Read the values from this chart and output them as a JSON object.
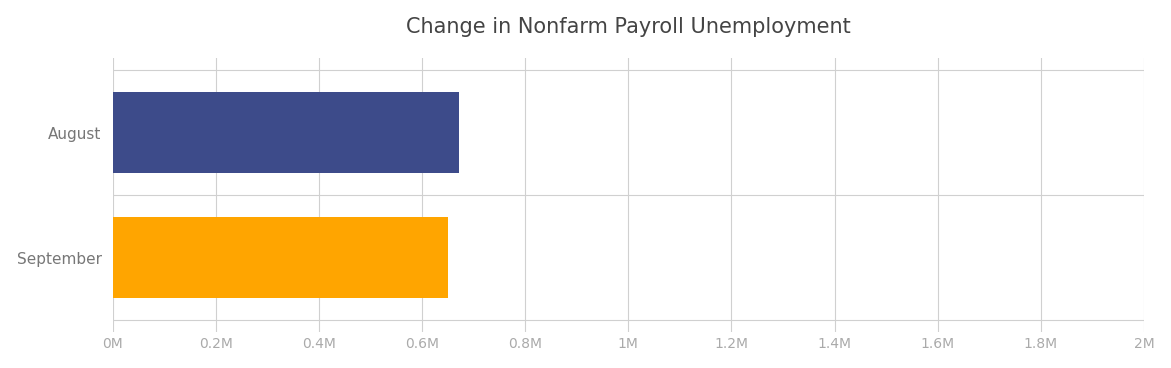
{
  "title": "Change in Nonfarm Payroll Unemployment",
  "categories": [
    "September",
    "August"
  ],
  "values": [
    651000,
    672000
  ],
  "bar_colors": [
    "#FFA500",
    "#3d4b8a"
  ],
  "background_color": "#ffffff",
  "plot_bg_color": "#ffffff",
  "xlim": [
    0,
    2000000
  ],
  "xtick_values": [
    0,
    200000,
    400000,
    600000,
    800000,
    1000000,
    1200000,
    1400000,
    1600000,
    1800000,
    2000000
  ],
  "xtick_labels": [
    "0M",
    "0.2M",
    "0.4M",
    "0.6M",
    "0.8M",
    "1M",
    "1.2M",
    "1.4M",
    "1.6M",
    "1.8M",
    "2M"
  ],
  "title_fontsize": 15,
  "title_color": "#444444",
  "tick_label_color": "#aaaaaa",
  "grid_color": "#d0d0d0",
  "bar_height": 0.65,
  "ytick_fontsize": 11,
  "xtick_fontsize": 10
}
